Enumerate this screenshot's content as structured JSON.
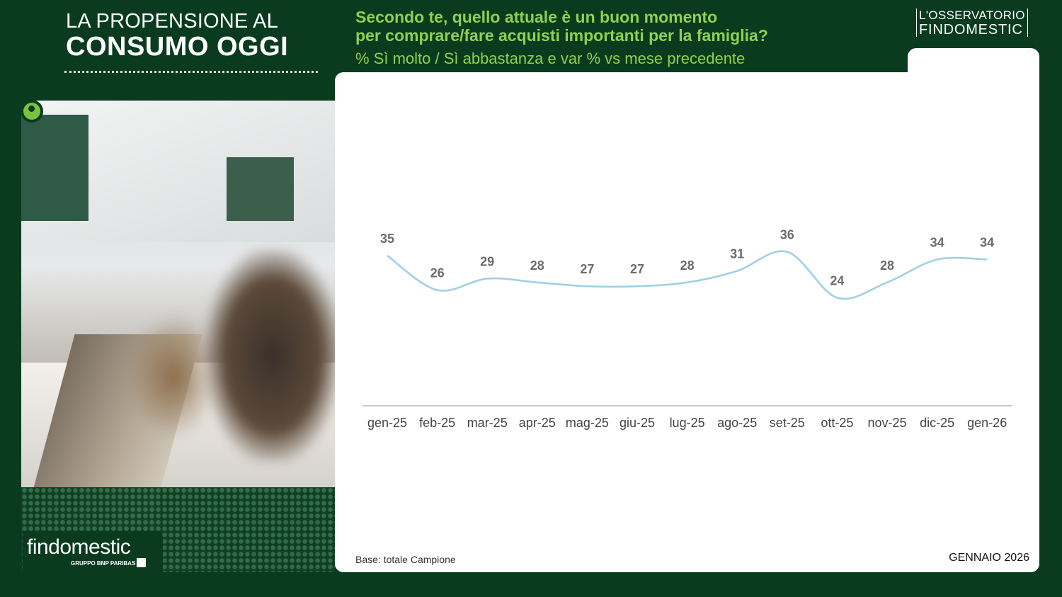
{
  "header": {
    "title_line1": "LA PROPENSIONE AL",
    "title_line2": "CONSUMO OGGI",
    "question_line1": "Secondo te, quello attuale è un buon momento",
    "question_line2": "per comprare/fare acquisti importanti per la famiglia?",
    "subtitle": "% Sì molto / Sì abbastanza e var % vs mese precedente",
    "brand_line1": "L'OSSERVATORIO",
    "brand_line2": "FINDOMESTIC"
  },
  "footer": {
    "base_note": "Base: totale Campione",
    "date": "GENNAIO 2026",
    "logo_text": "findomestic",
    "logo_subtext": "GRUPPO BNP PARIBAS"
  },
  "colors": {
    "background": "#0a3b1f",
    "accent_green": "#8fd14f",
    "line": "#9fd0e6",
    "labels": "#6b6b6b"
  },
  "chart_data": {
    "type": "line",
    "categories": [
      "gen-25",
      "feb-25",
      "mar-25",
      "apr-25",
      "mag-25",
      "giu-25",
      "lug-25",
      "ago-25",
      "set-25",
      "ott-25",
      "nov-25",
      "dic-25",
      "gen-26"
    ],
    "series": [
      {
        "values": [
          35,
          26,
          29,
          28,
          27,
          27,
          28,
          31,
          36,
          24,
          28,
          34,
          34
        ]
      }
    ],
    "data_labels": true,
    "grid": false,
    "legend": "none"
  }
}
